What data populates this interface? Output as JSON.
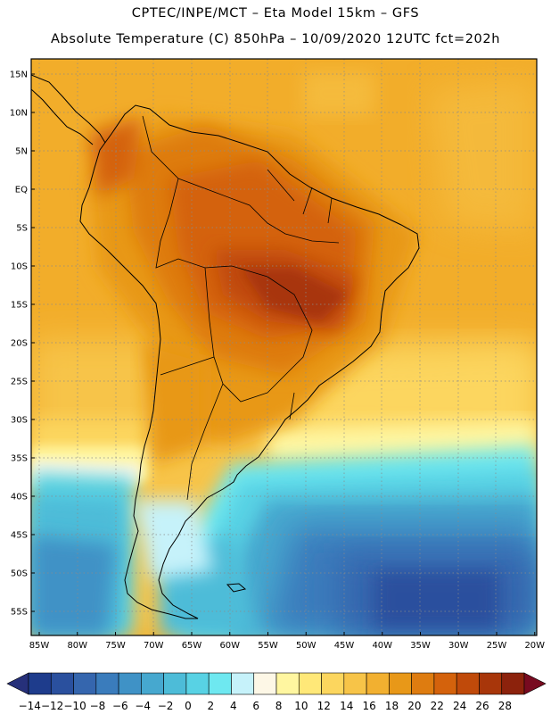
{
  "header": {
    "line1": "CPTEC/INPE/MCT –  Eta Model 15km – GFS",
    "line2": "Absolute Temperature (C) 850hPa – 10/09/2020 12UTC fct=202h"
  },
  "axes": {
    "lat_labels": [
      "15N",
      "10N",
      "5N",
      "EQ",
      "5S",
      "10S",
      "15S",
      "20S",
      "25S",
      "30S",
      "35S",
      "40S",
      "45S",
      "50S",
      "55S"
    ],
    "lon_labels": [
      "85W",
      "80W",
      "75W",
      "70W",
      "65W",
      "60W",
      "55W",
      "50W",
      "45W",
      "40W",
      "35W",
      "30W",
      "25W",
      "20W"
    ]
  },
  "colorbar": {
    "labels": [
      "-14",
      "-12",
      "-10",
      "-8",
      "-6",
      "-4",
      "-2",
      "0",
      "2",
      "4",
      "6",
      "8",
      "10",
      "12",
      "14",
      "16",
      "18",
      "20",
      "22",
      "24",
      "26",
      "28"
    ],
    "colors": [
      "#1e3c8c",
      "#2a509e",
      "#3566ae",
      "#3a7cbc",
      "#3f92c6",
      "#46a8cf",
      "#4dbcd8",
      "#58d2e4",
      "#6ee8f0",
      "#c6f2fa",
      "#fdf7e6",
      "#fff6a0",
      "#ffe878",
      "#fcd65e",
      "#f7c448",
      "#f2b030",
      "#e89818",
      "#de7c10",
      "#d4620c",
      "#c04a0a",
      "#a8360a",
      "#8c220c"
    ],
    "under_color": "#26307a",
    "over_color": "#780a20"
  },
  "legend_colors": {
    "ocean_south": "#2c5aa8",
    "ocean_mid": "#46b6da",
    "land_hot": "#b8581a",
    "background_warm": "#f2b030",
    "background_north": "#f4aa22"
  }
}
